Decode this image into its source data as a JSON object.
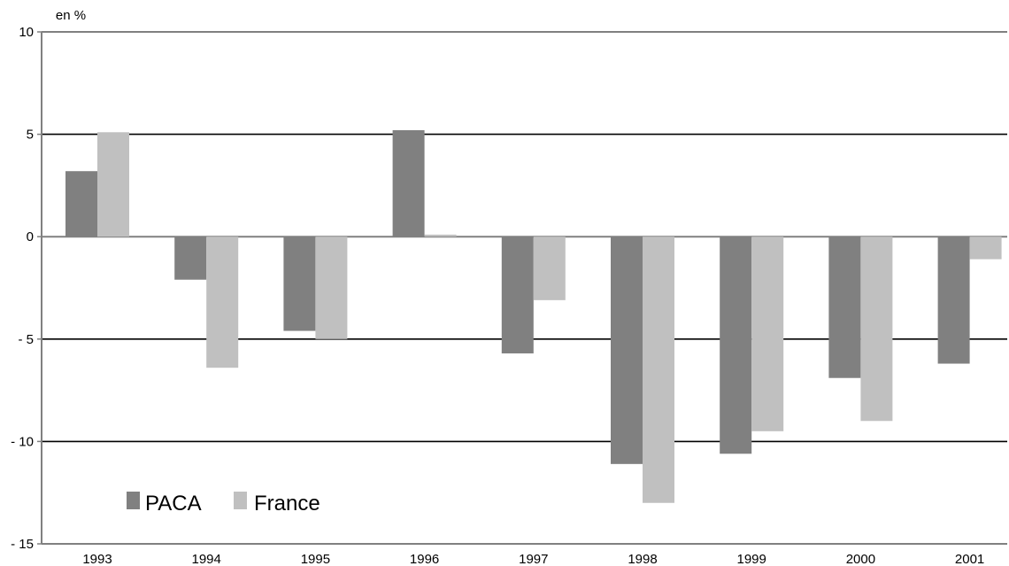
{
  "chart_data": {
    "type": "bar",
    "title": "",
    "ylabel": "en %",
    "xlabel": "",
    "categories": [
      "1993",
      "1994",
      "1995",
      "1996",
      "1997",
      "1998",
      "1999",
      "2000",
      "2001"
    ],
    "series": [
      {
        "name": "PACA",
        "color": "#808080",
        "values": [
          3.2,
          -2.1,
          -4.6,
          5.2,
          -5.7,
          -11.1,
          -10.6,
          -6.9,
          -6.2
        ]
      },
      {
        "name": "France",
        "color": "#c0c0c0",
        "values": [
          5.1,
          -6.4,
          -5.0,
          0.1,
          -3.1,
          -13.0,
          -9.5,
          -9.0,
          -1.1
        ]
      }
    ],
    "ylim": [
      -15,
      10
    ],
    "yticks": [
      10,
      5,
      0,
      -5,
      -10,
      -15
    ],
    "ytick_labels": [
      "10",
      "5",
      "0",
      "- 5",
      "- 10",
      "- 15"
    ],
    "grid": true,
    "legend_position": "bottom-left"
  }
}
